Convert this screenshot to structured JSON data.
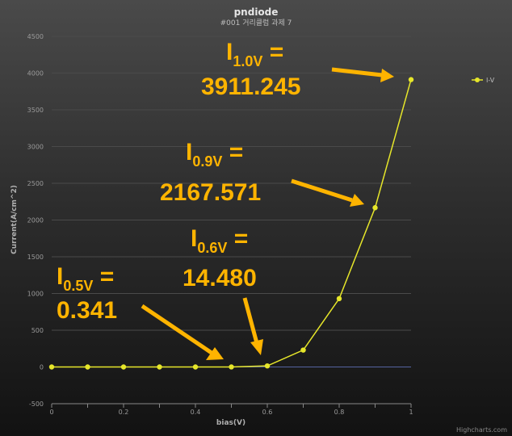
{
  "chart_data": {
    "type": "line",
    "title": "pndiode",
    "subtitle": "#001 거리클럼 과제 7",
    "xlabel": "bias(V)",
    "ylabel": "Current(A/cm^2)",
    "xlim": [
      0,
      1
    ],
    "ylim": [
      -500,
      4500
    ],
    "x_ticks": [
      "0",
      "0.2",
      "0.4",
      "0.6",
      "0.8",
      "1"
    ],
    "y_ticks": [
      "-500",
      "0",
      "500",
      "1000",
      "1500",
      "2000",
      "2500",
      "3000",
      "3500",
      "4000",
      "4500"
    ],
    "grid": true,
    "legend_position": "top-right",
    "series": [
      {
        "name": "I-V",
        "color": "#e6e62a",
        "x": [
          0,
          0.1,
          0.2,
          0.3,
          0.4,
          0.5,
          0.6,
          0.7,
          0.8,
          0.9,
          1.0
        ],
        "y": [
          0,
          0,
          0,
          0,
          0.02,
          0.341,
          14.48,
          230,
          930,
          2167.571,
          3911.245
        ]
      }
    ],
    "credit": "Highcharts.com",
    "annotations": [
      {
        "symbol": "I",
        "sub": "0.5V",
        "eq": " =",
        "value": "0.341"
      },
      {
        "symbol": "I",
        "sub": "0.6V",
        "eq": " =",
        "value": "14.480"
      },
      {
        "symbol": "I",
        "sub": "0.9V",
        "eq": " =",
        "value": "2167.571"
      },
      {
        "symbol": "I",
        "sub": "1.0V",
        "eq": " =",
        "value": "3911.245"
      }
    ],
    "annotation_color": "#ffb400"
  }
}
